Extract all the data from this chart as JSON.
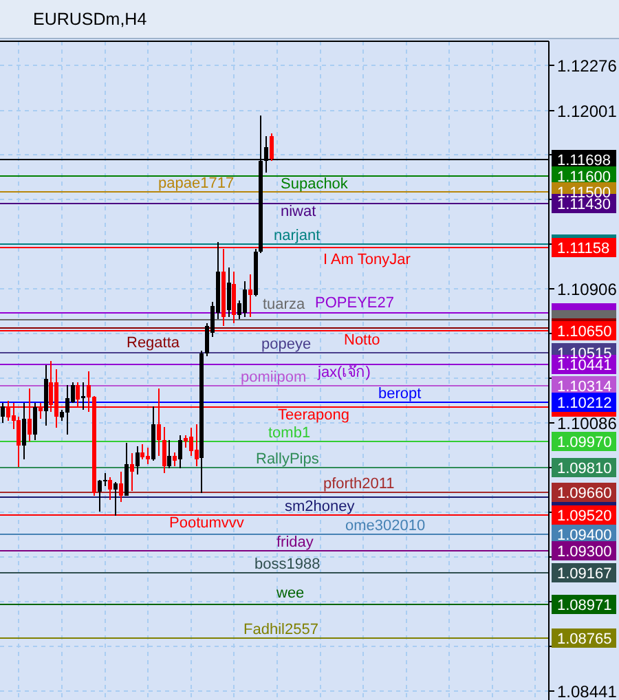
{
  "chart_data": {
    "type": "candlestick",
    "title": "EURUSDm,H4",
    "categories": [
      null,
      null,
      null,
      null,
      null,
      null,
      null,
      null,
      null,
      null,
      null,
      null,
      null,
      null,
      null,
      null,
      null,
      null,
      null,
      null,
      null,
      null,
      null,
      null,
      null,
      null,
      null,
      null,
      null,
      null,
      null,
      null,
      null,
      null,
      null,
      null,
      null,
      null,
      null,
      null,
      null,
      null,
      null,
      null,
      null,
      null,
      null,
      null,
      null,
      null,
      null,
      null,
      null,
      null,
      null,
      null,
      null,
      null,
      null,
      null,
      null,
      null,
      null,
      null,
      null,
      null,
      null,
      null,
      null,
      null,
      null,
      null,
      null,
      null,
      null,
      null,
      null,
      null,
      null,
      null,
      null,
      null,
      null,
      null,
      null,
      null,
      null,
      null,
      null,
      null,
      null,
      null,
      null,
      null,
      null,
      null,
      null,
      null,
      null,
      null,
      null,
      null
    ],
    "ohlc": [
      [
        1.10124,
        1.10207,
        1.10083,
        1.10185
      ],
      [
        1.10185,
        1.10221,
        1.10096,
        1.10119
      ],
      [
        1.1013,
        1.10207,
        1.10047,
        1.10096
      ],
      [
        1.10102,
        1.10124,
        1.09813,
        1.09945
      ],
      [
        1.09945,
        1.10207,
        1.09861,
        1.1011
      ],
      [
        1.1011,
        1.10296,
        1.09972,
        1.10013
      ],
      [
        1.10013,
        1.10207,
        1.0998,
        1.1018
      ],
      [
        1.1018,
        1.10207,
        1.1011,
        1.10158
      ],
      [
        1.10158,
        1.10437,
        1.10069,
        1.10354
      ],
      [
        1.10332,
        1.10462,
        1.10152,
        1.10193
      ],
      [
        1.10332,
        1.10412,
        1.10055,
        1.10124
      ],
      [
        1.10119,
        1.10166,
        1.10096,
        1.10152
      ],
      [
        1.10146,
        1.10318,
        1.10013,
        1.10235
      ],
      [
        1.10213,
        1.10332,
        1.10207,
        1.10318
      ],
      [
        1.10318,
        1.10332,
        1.10185,
        1.10229
      ],
      [
        1.10235,
        1.10332,
        1.10166,
        1.10249
      ],
      [
        1.10318,
        1.10401,
        1.10152,
        1.1024
      ],
      [
        1.10246,
        1.10249,
        1.09639,
        1.09653
      ],
      [
        1.09664,
        1.09736,
        1.09542,
        1.09731
      ],
      [
        1.09725,
        1.09778,
        1.09695,
        1.09736
      ],
      [
        1.09736,
        1.0975,
        1.09612,
        1.09675
      ],
      [
        1.09675,
        1.09722,
        1.09515,
        1.09714
      ],
      [
        1.09714,
        1.09783,
        1.09598,
        1.09639
      ],
      [
        1.09639,
        1.09964,
        1.09639,
        1.0983
      ],
      [
        1.0983,
        1.09897,
        1.09667,
        1.09783
      ],
      [
        1.09819,
        1.0994,
        1.0977,
        1.09905
      ],
      [
        1.09905,
        1.09953,
        1.09861,
        1.09875
      ],
      [
        1.0988,
        1.09931,
        1.09833,
        1.09861
      ],
      [
        1.09861,
        1.10185,
        1.09851,
        1.10074
      ],
      [
        1.10074,
        1.10296,
        1.0988,
        1.0998
      ],
      [
        1.0998,
        1.1006,
        1.09778,
        1.09819
      ],
      [
        1.09819,
        1.0998,
        1.09805,
        1.0988
      ],
      [
        1.0988,
        1.09905,
        1.09819,
        1.09851
      ],
      [
        1.09861,
        1.10008,
        1.09805,
        1.0998
      ],
      [
        1.09991,
        1.10008,
        1.09931,
        1.09972
      ],
      [
        1.1,
        1.10055,
        1.0988,
        1.0991
      ],
      [
        1.09918,
        1.10074,
        1.09819,
        1.09861
      ],
      [
        1.09869,
        1.10528,
        1.09653,
        1.10512
      ],
      [
        1.10512,
        1.10695,
        1.10495,
        1.10678
      ],
      [
        1.10637,
        1.10828,
        1.10612,
        1.10803
      ],
      [
        1.10761,
        1.11194,
        1.1072,
        1.11011
      ],
      [
        1.11011,
        1.11152,
        1.10678,
        1.10736
      ],
      [
        1.10778,
        1.11036,
        1.10736,
        1.10944
      ],
      [
        1.10936,
        1.11011,
        1.10695,
        1.10745
      ],
      [
        1.10745,
        1.10836,
        1.1072,
        1.1082
      ],
      [
        1.10761,
        1.10953,
        1.10736,
        1.10903
      ],
      [
        1.10903,
        1.10994,
        1.10736,
        1.1087
      ],
      [
        1.1087,
        1.11152,
        1.10861,
        1.11136
      ],
      [
        1.11136,
        1.11968,
        1.11127,
        1.11693
      ],
      [
        1.11693,
        1.11843,
        1.11618,
        1.11776
      ],
      [
        1.11843,
        1.1186,
        1.11693,
        1.11702
      ],
      null,
      null,
      null,
      null,
      null,
      null,
      null,
      null,
      null,
      null,
      null,
      null,
      null,
      null,
      null,
      null,
      null,
      null,
      null,
      null,
      null,
      null,
      null,
      null,
      null,
      null,
      null,
      null,
      null,
      null,
      null,
      null,
      null,
      null,
      null,
      null,
      null,
      null,
      null,
      null,
      null,
      null,
      null,
      null,
      null,
      null,
      null,
      null,
      null,
      null,
      null
    ],
    "colors": [
      "#000000",
      "#ff0000",
      "#ff0000",
      "#ff0000",
      "#000000",
      "#ff0000",
      "#000000",
      "#ff0000",
      "#000000",
      "#ff0000",
      "#ff0000",
      "#000000",
      "#000000",
      "#000000",
      "#ff0000",
      "#000000",
      "#ff0000",
      "#ff0000",
      "#000000",
      "#000000",
      "#ff0000",
      "#000000",
      "#ff0000",
      "#000000",
      "#ff0000",
      "#000000",
      "#ff0000",
      "#ff0000",
      "#000000",
      "#ff0000",
      "#ff0000",
      "#000000",
      "#ff0000",
      "#000000",
      "#ff0000",
      "#ff0000",
      "#ff0000",
      "#000000",
      "#000000",
      "#000000",
      "#000000",
      "#ff0000",
      "#000000",
      "#ff0000",
      "#000000",
      "#000000",
      "#ff0000",
      "#000000",
      "#000000",
      "#000000",
      "#ff0000",
      null,
      null,
      null,
      null,
      null,
      null,
      null,
      null,
      null,
      null,
      null,
      null,
      null,
      null,
      null,
      null,
      null,
      null,
      null,
      null,
      null,
      null,
      null,
      null,
      null,
      null,
      null,
      null,
      null,
      null,
      null,
      null,
      null,
      null,
      null,
      null,
      null,
      null,
      null,
      null,
      null,
      null,
      null,
      null,
      null,
      null,
      null,
      null,
      null,
      null,
      null
    ],
    "ylim": [
      1.08385,
      1.12425
    ],
    "yticks": [
      1.12276,
      1.12001,
      {
        "value": 1.11728,
        "label": null
      },
      {
        "value": 1.11454,
        "label": null
      },
      {
        "value": 1.1118,
        "label": null
      },
      1.10906,
      {
        "value": 1.10632,
        "label": null
      },
      {
        "value": 1.10358,
        "label": null
      },
      1.10086,
      {
        "value": 1.0981,
        "label": null
      },
      {
        "value": 1.09536,
        "label": null
      },
      {
        "value": 1.09262,
        "label": null
      },
      {
        "value": 1.08988,
        "label": null
      },
      {
        "value": 1.08716,
        "label": null
      },
      1.08441
    ],
    "tick_labels": "y",
    "grid": true,
    "ref_lines": [
      {
        "axis": "y",
        "value": 1.11698,
        "label": "1.11698",
        "color": "#000000"
      },
      {
        "axis": "y",
        "value": 1.116,
        "label": "1.11600",
        "color": "#008000"
      },
      {
        "axis": "y",
        "value": 1.115,
        "label": "1.11500",
        "color": "#b8860b"
      },
      {
        "axis": "y",
        "value": 1.1143,
        "label": "1.11430",
        "color": "#4b0082"
      },
      {
        "axis": "y",
        "value": 1.1118,
        "label": null,
        "color": "#008080"
      },
      {
        "axis": "y",
        "value": 1.11158,
        "label": "1.11158",
        "color": "#ff0000"
      },
      {
        "axis": "y",
        "value": 1.10758,
        "label": null,
        "color": "#9400d3"
      },
      {
        "axis": "y",
        "value": 1.10716,
        "label": null,
        "color": "#696969"
      },
      {
        "axis": "y",
        "value": 1.10668,
        "label": null,
        "color": "#8b0000"
      },
      {
        "axis": "y",
        "value": 1.1065,
        "label": "1.10650",
        "color": "#ff0000"
      },
      {
        "axis": "y",
        "value": 1.10515,
        "label": "1.10515",
        "color": "#483d8b"
      },
      {
        "axis": "y",
        "value": 1.10441,
        "label": "1.10441",
        "color": "#9400d3"
      },
      {
        "axis": "y",
        "value": 1.10314,
        "label": "1.10314",
        "color": "#ba55d3"
      },
      {
        "axis": "y",
        "value": 1.10183,
        "label": null,
        "color": "#ff0000"
      },
      {
        "axis": "y",
        "value": 1.10212,
        "label": "1.10212",
        "color": "#0000ff"
      },
      {
        "axis": "y",
        "value": 1.0997,
        "label": "1.09970",
        "color": "#32cd32"
      },
      {
        "axis": "y",
        "value": 1.0981,
        "label": "1.09810",
        "color": "#2e8b57"
      },
      {
        "axis": "y",
        "value": 1.0963,
        "label": null,
        "color": "#191970"
      },
      {
        "axis": "y",
        "value": 1.0966,
        "label": "1.09660",
        "color": "#a52a2a"
      },
      {
        "axis": "y",
        "value": 1.0952,
        "label": "1.09520",
        "color": "#ff0000"
      },
      {
        "axis": "y",
        "value": 1.094,
        "label": "1.09400",
        "color": "#4682b4"
      },
      {
        "axis": "y",
        "value": 1.093,
        "label": "1.09300",
        "color": "#800080"
      },
      {
        "axis": "y",
        "value": 1.09167,
        "label": "1.09167",
        "color": "#2f4f4f"
      },
      {
        "axis": "y",
        "value": 1.08971,
        "label": "1.08971",
        "color": "#006400"
      },
      {
        "axis": "y",
        "value": 1.08765,
        "label": "1.08765",
        "color": "#808000"
      }
    ],
    "annotations": [
      {
        "text": "Supachok",
        "y": 1.116
      },
      {
        "text": "papae1717",
        "y": 1.115
      },
      {
        "text": "niwat",
        "y": 1.1143
      },
      {
        "text": "narjant",
        "y": 1.1118
      },
      {
        "text": "I Am TonyJar",
        "y": 1.11158
      },
      {
        "text": "POPEYE27",
        "y": 1.10758
      },
      {
        "text": "tuarza",
        "y": 1.10716
      },
      {
        "text": "Regatta",
        "y": 1.10668
      },
      {
        "text": "Notto",
        "y": 1.1065
      },
      {
        "text": "popeye",
        "y": 1.10515
      },
      {
        "text": "jax(เจ๊ก)",
        "y": 1.10441
      },
      {
        "text": "pomiipom",
        "y": 1.10314
      },
      {
        "text": "Teerapong",
        "y": 1.10183
      },
      {
        "text": "beropt",
        "y": 1.10212
      },
      {
        "text": "tomb1",
        "y": 1.0997
      },
      {
        "text": "RallyPips",
        "y": 1.0981
      },
      {
        "text": "sm2honey",
        "y": 1.0963
      },
      {
        "text": "pforth2011",
        "y": 1.0966
      },
      {
        "text": "Pootumvvv",
        "y": 1.0952
      },
      {
        "text": "ome302010",
        "y": 1.094
      },
      {
        "text": "friday",
        "y": 1.093
      },
      {
        "text": "boss1988",
        "y": 1.09167
      },
      {
        "text": "wee",
        "y": 1.08971
      },
      {
        "text": "Fadhil2557",
        "y": 1.08765
      }
    ]
  }
}
